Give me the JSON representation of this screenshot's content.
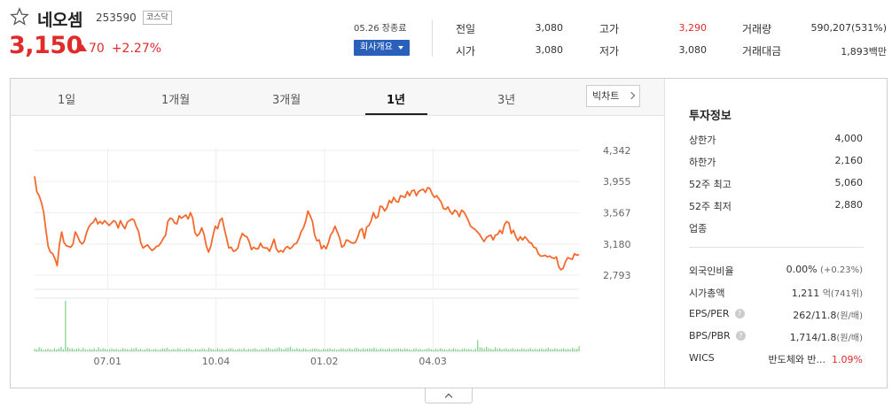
{
  "stock": {
    "name": "네오셈",
    "code": "253590",
    "market": "코스닥",
    "price": "3,150",
    "change": "70",
    "change_pct": "+2.27%"
  },
  "summary": {
    "date": "05.26 장종료",
    "company_button": "회사개요",
    "rows": [
      {
        "label": "전일",
        "value": "3,080"
      },
      {
        "label": "시가",
        "value": "3,080"
      },
      {
        "label": "고가",
        "value": "3,290"
      },
      {
        "label": "저가",
        "value": "3,080"
      },
      {
        "label": "거래량",
        "value": "590,207(531%)"
      },
      {
        "label": "거래대금",
        "value": "1,893백만"
      }
    ]
  },
  "tabs": [
    "1일",
    "1개월",
    "3개월",
    "1년",
    "3년"
  ],
  "active_tab": "1년",
  "big_chart_label": "빅차트",
  "chart_data": {
    "type": "line",
    "y_ticks": [
      "4,342",
      "3,955",
      "3,567",
      "3,180",
      "2,793"
    ],
    "x_ticks": [
      "07.01",
      "10.04",
      "01.02",
      "04.03"
    ],
    "ylim": [
      2793,
      4342
    ],
    "line_color": "#f46a2e",
    "volume_color": "#7ccf86",
    "price_series": [
      4020,
      3830,
      3780,
      3700,
      3580,
      3360,
      3150,
      3080,
      3060,
      3000,
      2910,
      3170,
      3330,
      3200,
      3160,
      3150,
      3140,
      3180,
      3330,
      3280,
      3210,
      3180,
      3210,
      3320,
      3390,
      3430,
      3450,
      3500,
      3430,
      3460,
      3430,
      3470,
      3440,
      3410,
      3440,
      3470,
      3450,
      3380,
      3470,
      3410,
      3370,
      3450,
      3470,
      3490,
      3480,
      3400,
      3340,
      3200,
      3130,
      3150,
      3170,
      3130,
      3100,
      3120,
      3150,
      3160,
      3200,
      3250,
      3290,
      3460,
      3500,
      3490,
      3440,
      3430,
      3530,
      3500,
      3520,
      3540,
      3490,
      3570,
      3500,
      3320,
      3280,
      3310,
      3380,
      3300,
      3160,
      3080,
      3150,
      3290,
      3400,
      3370,
      3470,
      3500,
      3370,
      3250,
      3130,
      3140,
      3090,
      3100,
      3130,
      3240,
      3310,
      3280,
      3270,
      3210,
      3110,
      3140,
      3120,
      3120,
      3190,
      3140,
      3130,
      3130,
      3090,
      3160,
      3240,
      3120,
      3080,
      3100,
      3080,
      3130,
      3150,
      3120,
      3140,
      3180,
      3190,
      3250,
      3330,
      3380,
      3460,
      3590,
      3530,
      3460,
      3290,
      3220,
      3230,
      3120,
      3160,
      3120,
      3190,
      3290,
      3330,
      3400,
      3330,
      3260,
      3140,
      3160,
      3230,
      3220,
      3200,
      3190,
      3200,
      3260,
      3350,
      3370,
      3250,
      3390,
      3410,
      3470,
      3570,
      3500,
      3520,
      3650,
      3640,
      3590,
      3630,
      3720,
      3690,
      3760,
      3710,
      3700,
      3780,
      3770,
      3760,
      3830,
      3780,
      3840,
      3850,
      3780,
      3830,
      3850,
      3860,
      3820,
      3880,
      3870,
      3800,
      3760,
      3780,
      3740,
      3700,
      3620,
      3610,
      3640,
      3580,
      3550,
      3600,
      3580,
      3520,
      3600,
      3580,
      3530,
      3470,
      3400,
      3380,
      3360,
      3330,
      3300,
      3250,
      3210,
      3260,
      3280,
      3290,
      3230,
      3290,
      3300,
      3350,
      3310,
      3420,
      3460,
      3440,
      3310,
      3350,
      3270,
      3220,
      3270,
      3230,
      3270,
      3240,
      3200,
      3190,
      3140,
      3130,
      3060,
      3030,
      3030,
      3040,
      3020,
      3030,
      3010,
      3000,
      3020,
      2900,
      2860,
      2880,
      2960,
      3010,
      3000,
      2990,
      3060,
      3040,
      3050
    ],
    "volume_series": [
      0.05,
      0.04,
      0.08,
      0.06,
      0.03,
      0.04,
      0.05,
      0.04,
      0.03,
      0.06,
      0.04,
      0.06,
      0.09,
      0.04,
      1.0,
      0.08,
      0.05,
      0.06,
      0.04,
      0.05,
      0.06,
      0.03,
      0.07,
      0.04,
      0.03,
      0.05,
      0.04,
      0.06,
      0.03,
      0.08,
      0.04,
      0.06,
      0.05,
      0.03,
      0.04,
      0.06,
      0.04,
      0.05,
      0.03,
      0.04,
      0.06,
      0.05,
      0.04,
      0.03,
      0.06,
      0.05,
      0.07,
      0.04,
      0.05,
      0.03,
      0.04,
      0.06,
      0.05,
      0.03,
      0.04,
      0.05,
      0.03,
      0.04,
      0.06,
      0.05,
      0.07,
      0.04,
      0.03,
      0.05,
      0.04,
      0.06,
      0.05,
      0.03,
      0.04,
      0.05,
      0.06,
      0.04,
      0.03,
      0.05,
      0.04,
      0.04,
      0.06,
      0.05,
      0.03,
      0.07,
      0.05,
      0.04,
      0.03,
      0.06,
      0.04,
      0.05,
      0.03,
      0.04,
      0.05,
      0.06,
      0.05,
      0.03,
      0.04,
      0.05,
      0.04,
      0.06,
      0.03,
      0.05,
      0.04,
      0.05,
      0.06,
      0.04,
      0.03,
      0.05,
      0.04,
      0.06,
      0.07,
      0.05,
      0.04,
      0.05,
      0.06,
      0.08,
      0.05,
      0.04,
      0.06,
      0.07,
      0.09,
      0.05,
      0.04,
      0.06,
      0.05,
      0.04,
      0.06,
      0.05,
      0.03,
      0.04,
      0.05,
      0.06,
      0.05,
      0.04,
      0.03,
      0.05,
      0.04,
      0.05,
      0.06,
      0.04,
      0.05,
      0.03,
      0.04,
      0.06,
      0.05,
      0.04,
      0.05,
      0.06,
      0.04,
      0.05,
      0.07,
      0.05,
      0.04,
      0.06,
      0.05,
      0.05,
      0.06,
      0.05,
      0.07,
      0.05,
      0.04,
      0.06,
      0.05,
      0.04,
      0.05,
      0.06,
      0.04,
      0.05,
      0.05,
      0.06,
      0.05,
      0.04,
      0.06,
      0.05,
      0.04,
      0.03,
      0.05,
      0.06,
      0.04,
      0.05,
      0.03,
      0.04,
      0.05,
      0.06,
      0.04,
      0.03,
      0.05,
      0.04,
      0.06,
      0.05,
      0.04,
      0.03,
      0.05,
      0.04,
      0.06,
      0.05,
      0.04,
      0.03,
      0.05,
      0.06,
      0.04,
      0.05,
      0.04,
      0.03,
      0.05,
      0.22,
      0.08,
      0.07,
      0.05,
      0.09,
      0.06,
      0.05,
      0.04,
      0.08,
      0.05,
      0.06,
      0.04,
      0.05,
      0.06,
      0.04,
      0.05,
      0.06,
      0.04,
      0.05,
      0.04,
      0.06,
      0.05,
      0.04,
      0.05,
      0.06,
      0.04,
      0.05,
      0.04,
      0.05,
      0.06,
      0.04,
      0.05,
      0.07,
      0.05,
      0.04,
      0.06,
      0.05,
      0.04,
      0.05,
      0.06,
      0.04,
      0.05,
      0.04,
      0.07,
      0.05,
      0.05,
      0.1
    ]
  },
  "info": {
    "title": "투자정보",
    "rows": [
      {
        "label": "상한가",
        "value": "4,000"
      },
      {
        "label": "하한가",
        "value": "2,160"
      },
      {
        "label": "52주 최고",
        "value": "5,060"
      },
      {
        "label": "52주 최저",
        "value": "2,880"
      },
      {
        "label": "업종",
        "value": ""
      }
    ],
    "rows2": [
      {
        "label": "외국인비율",
        "value": "0.00%",
        "extra": "(+0.23%)"
      },
      {
        "label": "시가총액",
        "value": "1,211",
        "extra": "억(741위)"
      },
      {
        "label": "EPS/PER",
        "value": "262/11.8",
        "extra": "(원/배)"
      },
      {
        "label": "BPS/PBR",
        "value": "1,714/1.8",
        "extra": "(원/배)"
      },
      {
        "label": "WICS",
        "value": "반도체와 반...",
        "extra": "1.09%"
      }
    ]
  }
}
